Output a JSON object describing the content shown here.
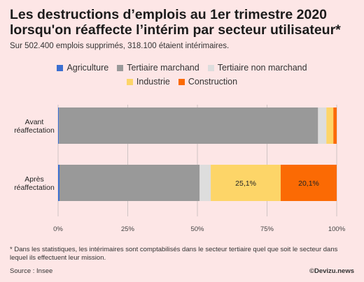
{
  "title": "Les destructions d’emplois au 1er trimestre 2020\nlorsqu'on réaffecte l’intérim par secteur utilisateur*",
  "subtitle": "Sur 502.400 emplois supprimés, 318.100 étaient intérimaires.",
  "footnote": "* Dans les statistiques, les intérimaires sont comptabilisés dans le secteur tertiaire quel que soit le secteur dans lequel ils effectuent leur mission.",
  "source": "Source : Insee",
  "brand": "©Devizu.news",
  "legend_rows": [
    [
      0,
      1,
      2
    ],
    [
      3,
      4
    ]
  ],
  "chart_data": {
    "type": "bar",
    "orientation": "horizontal",
    "stacked": true,
    "categories": [
      "Avant\nréaffectation",
      "Après\nréaffectation"
    ],
    "series": [
      {
        "name": "Agriculture",
        "color": "#3b6fd1",
        "values": [
          0.3,
          0.5
        ]
      },
      {
        "name": "Tertiaire marchand",
        "color": "#999999",
        "values": [
          93.0,
          50.3
        ]
      },
      {
        "name": "Tertiaire non marchand",
        "color": "#dddddd",
        "values": [
          3.0,
          4.0
        ]
      },
      {
        "name": "Industrie",
        "color": "#fdd568",
        "values": [
          2.5,
          25.1
        ]
      },
      {
        "name": "Construction",
        "color": "#fb6a04",
        "values": [
          1.2,
          20.1
        ]
      }
    ],
    "data_labels": [
      {
        "series": 3,
        "category": 1,
        "text": "25,1%"
      },
      {
        "series": 4,
        "category": 1,
        "text": "20,1%"
      }
    ],
    "xlim": [
      0,
      100
    ],
    "xticks": [
      0,
      25,
      50,
      75,
      100
    ],
    "xtick_labels": [
      "0%",
      "25%",
      "50%",
      "75%",
      "100%"
    ],
    "grid": "vertical"
  }
}
